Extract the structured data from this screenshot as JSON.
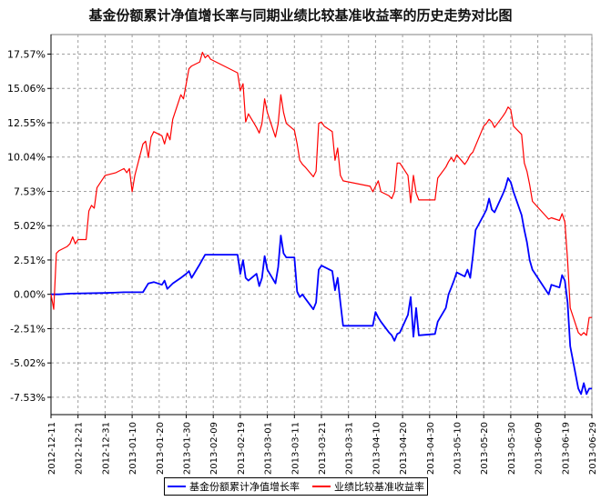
{
  "chart_data": {
    "type": "line",
    "title": "基金份额累计净值增长率与同期业绩比较基准收益率的历史走势对比图",
    "y_unit": "%",
    "ylim": [
      -8.8,
      19.0
    ],
    "y_ticks": [
      "17.57%",
      "15.06%",
      "12.55%",
      "10.04%",
      "7.53%",
      "5.02%",
      "2.51%",
      "0.00%",
      "-2.51%",
      "-5.02%",
      "-7.53%"
    ],
    "y_tick_values": [
      17.57,
      15.06,
      12.55,
      10.04,
      7.53,
      5.02,
      2.51,
      0.0,
      -2.51,
      -5.02,
      -7.53
    ],
    "x_start": "2012-12-11",
    "x_end": "2013-06-29",
    "x_ticks": [
      "2012-12-11",
      "2012-12-21",
      "2012-12-31",
      "2013-01-10",
      "2013-01-20",
      "2013-01-30",
      "2013-02-09",
      "2013-02-19",
      "2013-03-01",
      "2013-03-11",
      "2013-03-21",
      "2013-03-31",
      "2013-04-10",
      "2013-04-20",
      "2013-04-30",
      "2013-05-10",
      "2013-05-20",
      "2013-05-30",
      "2013-06-09",
      "2013-06-19",
      "2013-06-29"
    ],
    "grid": true,
    "legend_position": "bottom",
    "series": [
      {
        "name": "基金份额累计净值增长率",
        "color": "#0000ff",
        "points": [
          [
            "2012-12-11",
            0.0
          ],
          [
            "2012-12-14",
            0.0
          ],
          [
            "2012-12-18",
            0.05
          ],
          [
            "2012-12-31",
            0.1
          ],
          [
            "2013-01-07",
            0.15
          ],
          [
            "2013-01-14",
            0.15
          ],
          [
            "2013-01-16",
            0.8
          ],
          [
            "2013-01-18",
            0.9
          ],
          [
            "2013-01-21",
            0.7
          ],
          [
            "2013-01-22",
            1.0
          ],
          [
            "2013-01-23",
            0.4
          ],
          [
            "2013-01-25",
            0.8
          ],
          [
            "2013-01-28",
            1.2
          ],
          [
            "2013-01-30",
            1.5
          ],
          [
            "2013-01-31",
            1.7
          ],
          [
            "2013-02-01",
            1.2
          ],
          [
            "2013-02-04",
            2.2
          ],
          [
            "2013-02-06",
            2.9
          ],
          [
            "2013-02-18",
            2.9
          ],
          [
            "2013-02-19",
            1.5
          ],
          [
            "2013-02-20",
            2.5
          ],
          [
            "2013-02-21",
            1.2
          ],
          [
            "2013-02-22",
            1.0
          ],
          [
            "2013-02-25",
            1.5
          ],
          [
            "2013-02-26",
            0.6
          ],
          [
            "2013-02-27",
            1.2
          ],
          [
            "2013-02-28",
            2.8
          ],
          [
            "2013-03-01",
            1.8
          ],
          [
            "2013-03-04",
            0.8
          ],
          [
            "2013-03-05",
            2.0
          ],
          [
            "2013-03-06",
            4.3
          ],
          [
            "2013-03-07",
            3.0
          ],
          [
            "2013-03-08",
            2.7
          ],
          [
            "2013-03-11",
            2.7
          ],
          [
            "2013-03-12",
            0.2
          ],
          [
            "2013-03-13",
            -0.2
          ],
          [
            "2013-03-14",
            0.0
          ],
          [
            "2013-03-15",
            -0.3
          ],
          [
            "2013-03-18",
            -1.1
          ],
          [
            "2013-03-19",
            -0.6
          ],
          [
            "2013-03-20",
            1.8
          ],
          [
            "2013-03-21",
            2.1
          ],
          [
            "2013-03-22",
            2.0
          ],
          [
            "2013-03-25",
            1.7
          ],
          [
            "2013-03-26",
            0.3
          ],
          [
            "2013-03-27",
            1.2
          ],
          [
            "2013-03-28",
            -0.6
          ],
          [
            "2013-03-29",
            -2.3
          ],
          [
            "2013-04-09",
            -2.3
          ],
          [
            "2013-04-10",
            -1.3
          ],
          [
            "2013-04-11",
            -1.7
          ],
          [
            "2013-04-12",
            -2.0
          ],
          [
            "2013-04-15",
            -2.8
          ],
          [
            "2013-04-16",
            -3.0
          ],
          [
            "2013-04-17",
            -3.4
          ],
          [
            "2013-04-18",
            -2.9
          ],
          [
            "2013-04-19",
            -2.8
          ],
          [
            "2013-04-22",
            -1.5
          ],
          [
            "2013-04-23",
            -0.2
          ],
          [
            "2013-04-24",
            -3.1
          ],
          [
            "2013-04-25",
            -1.0
          ],
          [
            "2013-04-26",
            -3.0
          ],
          [
            "2013-05-02",
            -2.9
          ],
          [
            "2013-05-03",
            -2.0
          ],
          [
            "2013-05-06",
            -1.0
          ],
          [
            "2013-05-07",
            0.0
          ],
          [
            "2013-05-08",
            0.5
          ],
          [
            "2013-05-09",
            1.0
          ],
          [
            "2013-05-10",
            1.6
          ],
          [
            "2013-05-13",
            1.3
          ],
          [
            "2013-05-14",
            1.8
          ],
          [
            "2013-05-15",
            1.2
          ],
          [
            "2013-05-16",
            2.8
          ],
          [
            "2013-05-17",
            4.7
          ],
          [
            "2013-05-20",
            5.8
          ],
          [
            "2013-05-21",
            6.2
          ],
          [
            "2013-05-22",
            7.0
          ],
          [
            "2013-05-23",
            6.2
          ],
          [
            "2013-05-24",
            6.0
          ],
          [
            "2013-05-27",
            7.3
          ],
          [
            "2013-05-28",
            7.8
          ],
          [
            "2013-05-29",
            8.5
          ],
          [
            "2013-05-30",
            8.2
          ],
          [
            "2013-05-31",
            7.5
          ],
          [
            "2013-06-03",
            5.8
          ],
          [
            "2013-06-04",
            4.7
          ],
          [
            "2013-06-05",
            3.8
          ],
          [
            "2013-06-06",
            2.5
          ],
          [
            "2013-06-07",
            1.8
          ],
          [
            "2013-06-13",
            0.0
          ],
          [
            "2013-06-14",
            0.7
          ],
          [
            "2013-06-17",
            0.5
          ],
          [
            "2013-06-18",
            1.4
          ],
          [
            "2013-06-19",
            1.0
          ],
          [
            "2013-06-20",
            -0.6
          ],
          [
            "2013-06-21",
            -3.8
          ],
          [
            "2013-06-24",
            -6.9
          ],
          [
            "2013-06-25",
            -7.3
          ],
          [
            "2013-06-26",
            -6.5
          ],
          [
            "2013-06-27",
            -7.3
          ],
          [
            "2013-06-28",
            -6.9
          ],
          [
            "2013-06-29",
            -6.9
          ]
        ]
      },
      {
        "name": "业绩比较基准收益率",
        "color": "#ff0000",
        "points": [
          [
            "2012-12-11",
            0.0
          ],
          [
            "2012-12-12",
            -1.1
          ],
          [
            "2012-12-13",
            3.0
          ],
          [
            "2012-12-14",
            3.2
          ],
          [
            "2012-12-17",
            3.5
          ],
          [
            "2012-12-18",
            3.7
          ],
          [
            "2012-12-19",
            4.2
          ],
          [
            "2012-12-20",
            3.7
          ],
          [
            "2012-12-21",
            4.0
          ],
          [
            "2012-12-24",
            4.0
          ],
          [
            "2012-12-25",
            6.1
          ],
          [
            "2012-12-26",
            6.5
          ],
          [
            "2012-12-27",
            6.3
          ],
          [
            "2012-12-28",
            7.8
          ],
          [
            "2012-12-31",
            8.7
          ],
          [
            "2013-01-04",
            8.9
          ],
          [
            "2013-01-07",
            9.2
          ],
          [
            "2013-01-08",
            8.9
          ],
          [
            "2013-01-09",
            9.2
          ],
          [
            "2013-01-10",
            7.5
          ],
          [
            "2013-01-11",
            8.7
          ],
          [
            "2013-01-14",
            11.0
          ],
          [
            "2013-01-15",
            11.2
          ],
          [
            "2013-01-16",
            10.0
          ],
          [
            "2013-01-17",
            11.5
          ],
          [
            "2013-01-18",
            11.9
          ],
          [
            "2013-01-21",
            11.6
          ],
          [
            "2013-01-22",
            11.0
          ],
          [
            "2013-01-23",
            11.8
          ],
          [
            "2013-01-24",
            11.3
          ],
          [
            "2013-01-25",
            12.8
          ],
          [
            "2013-01-28",
            14.6
          ],
          [
            "2013-01-29",
            14.3
          ],
          [
            "2013-01-31",
            16.5
          ],
          [
            "2013-02-01",
            16.7
          ],
          [
            "2013-02-04",
            17.0
          ],
          [
            "2013-02-05",
            17.7
          ],
          [
            "2013-02-06",
            17.3
          ],
          [
            "2013-02-07",
            17.5
          ],
          [
            "2013-02-08",
            17.2
          ],
          [
            "2013-02-18",
            16.2
          ],
          [
            "2013-02-19",
            14.9
          ],
          [
            "2013-02-20",
            15.4
          ],
          [
            "2013-02-21",
            12.6
          ],
          [
            "2013-02-22",
            13.2
          ],
          [
            "2013-02-25",
            12.2
          ],
          [
            "2013-02-26",
            11.8
          ],
          [
            "2013-02-27",
            12.5
          ],
          [
            "2013-02-28",
            14.3
          ],
          [
            "2013-03-01",
            13.3
          ],
          [
            "2013-03-04",
            11.5
          ],
          [
            "2013-03-05",
            12.5
          ],
          [
            "2013-03-06",
            14.6
          ],
          [
            "2013-03-07",
            13.3
          ],
          [
            "2013-03-08",
            12.5
          ],
          [
            "2013-03-11",
            12.0
          ],
          [
            "2013-03-12",
            11.0
          ],
          [
            "2013-03-13",
            9.8
          ],
          [
            "2013-03-14",
            9.5
          ],
          [
            "2013-03-15",
            9.3
          ],
          [
            "2013-03-18",
            8.6
          ],
          [
            "2013-03-19",
            9.0
          ],
          [
            "2013-03-20",
            12.5
          ],
          [
            "2013-03-21",
            12.6
          ],
          [
            "2013-03-22",
            12.3
          ],
          [
            "2013-03-25",
            11.9
          ],
          [
            "2013-03-26",
            9.8
          ],
          [
            "2013-03-27",
            10.7
          ],
          [
            "2013-03-28",
            8.7
          ],
          [
            "2013-03-29",
            8.3
          ],
          [
            "2013-04-08",
            7.9
          ],
          [
            "2013-04-09",
            7.5
          ],
          [
            "2013-04-10",
            7.9
          ],
          [
            "2013-04-11",
            8.3
          ],
          [
            "2013-04-12",
            7.5
          ],
          [
            "2013-04-15",
            7.2
          ],
          [
            "2013-04-16",
            7.0
          ],
          [
            "2013-04-17",
            7.5
          ],
          [
            "2013-04-18",
            9.6
          ],
          [
            "2013-04-19",
            9.6
          ],
          [
            "2013-04-22",
            8.7
          ],
          [
            "2013-04-23",
            6.7
          ],
          [
            "2013-04-24",
            8.7
          ],
          [
            "2013-04-25",
            7.4
          ],
          [
            "2013-04-26",
            6.9
          ],
          [
            "2013-05-02",
            6.9
          ],
          [
            "2013-05-03",
            8.5
          ],
          [
            "2013-05-06",
            9.3
          ],
          [
            "2013-05-07",
            9.7
          ],
          [
            "2013-05-08",
            10.0
          ],
          [
            "2013-05-09",
            9.7
          ],
          [
            "2013-05-10",
            10.2
          ],
          [
            "2013-05-13",
            9.5
          ],
          [
            "2013-05-14",
            9.8
          ],
          [
            "2013-05-15",
            10.2
          ],
          [
            "2013-05-16",
            10.4
          ],
          [
            "2013-05-20",
            12.3
          ],
          [
            "2013-05-21",
            12.5
          ],
          [
            "2013-05-22",
            12.8
          ],
          [
            "2013-05-23",
            12.6
          ],
          [
            "2013-05-24",
            12.2
          ],
          [
            "2013-05-27",
            13.0
          ],
          [
            "2013-05-28",
            13.3
          ],
          [
            "2013-05-29",
            13.7
          ],
          [
            "2013-05-30",
            13.5
          ],
          [
            "2013-05-31",
            12.3
          ],
          [
            "2013-06-03",
            11.7
          ],
          [
            "2013-06-04",
            9.6
          ],
          [
            "2013-06-05",
            9.0
          ],
          [
            "2013-06-06",
            8.0
          ],
          [
            "2013-06-07",
            6.8
          ],
          [
            "2013-06-13",
            5.5
          ],
          [
            "2013-06-14",
            5.6
          ],
          [
            "2013-06-17",
            5.4
          ],
          [
            "2013-06-18",
            5.9
          ],
          [
            "2013-06-19",
            5.3
          ],
          [
            "2013-06-20",
            2.5
          ],
          [
            "2013-06-21",
            -1.0
          ],
          [
            "2013-06-24",
            -2.8
          ],
          [
            "2013-06-25",
            -3.0
          ],
          [
            "2013-06-26",
            -2.8
          ],
          [
            "2013-06-27",
            -3.0
          ],
          [
            "2013-06-28",
            -1.7
          ],
          [
            "2013-06-29",
            -1.7
          ]
        ]
      }
    ]
  }
}
